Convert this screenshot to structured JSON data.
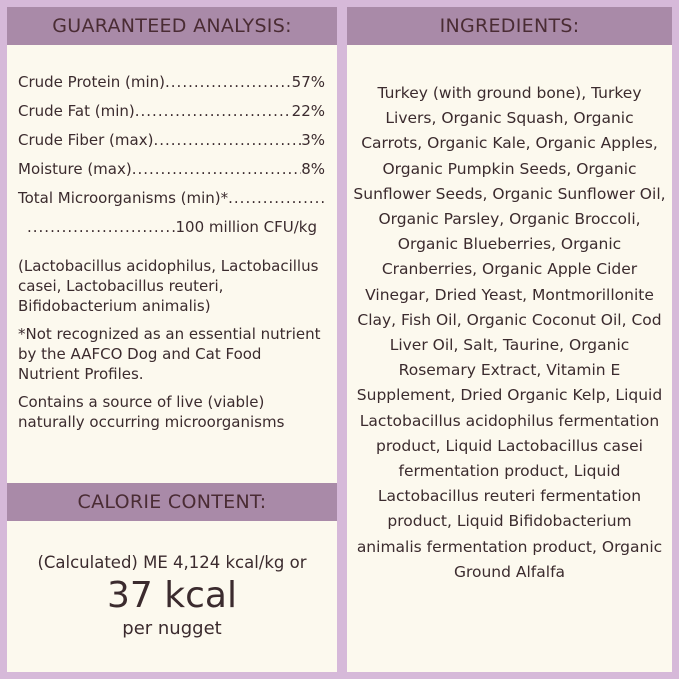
{
  "analysis": {
    "title": "GUARANTEED ANALYSIS:",
    "rows": [
      {
        "label": "Crude Protein (min)",
        "value": "57%"
      },
      {
        "label": "Crude Fat (min)",
        "value": "22%"
      },
      {
        "label": "Crude Fiber (max)",
        "value": "3%"
      },
      {
        "label": "Moisture (max)",
        "value": "8%"
      },
      {
        "label": "Total Microorganisms (min)*",
        "value": ""
      },
      {
        "label": "",
        "value": "100 million CFU/kg"
      }
    ],
    "strains": "(Lactobacillus acidophilus, Lactobacillus casei, Lactobacillus reuteri, Bifidobacterium animalis)",
    "note": "*Not recognized as an essential nutrient by the AAFCO Dog and Cat Food Nutrient Profiles.",
    "live": "Contains a source of live (viable) naturally occurring microorganisms"
  },
  "calorie": {
    "title": "CALORIE CONTENT:",
    "line1": "(Calculated) ME 4,124 kcal/kg or",
    "big": "37 kcal",
    "line3": "per nugget"
  },
  "ingredients": {
    "title": "INGREDIENTS:",
    "text": "Turkey (with ground bone), Turkey Livers, Organic Squash, Organic Carrots, Organic Kale, Organic Apples, Organic Pumpkin Seeds, Organic Sunflower Seeds, Organic Sunflower Oil, Organic Parsley, Organic Broccoli, Organic Blueberries, Organic Cranberries, Organic Apple Cider Vinegar, Dried Yeast, Montmorillonite Clay, Fish Oil, Organic Coconut Oil, Cod Liver Oil, Salt, Taurine, Organic Rosemary Extract, Vitamin E Supplement, Dried Organic Kelp, Liquid Lactobacillus acidophilus fermentation product, Liquid Lactobacillus casei fermentation product, Liquid Lactobacillus reuteri fermentation product, Liquid Bifidobacterium animalis fermentation product, Organic Ground Alfalfa"
  }
}
